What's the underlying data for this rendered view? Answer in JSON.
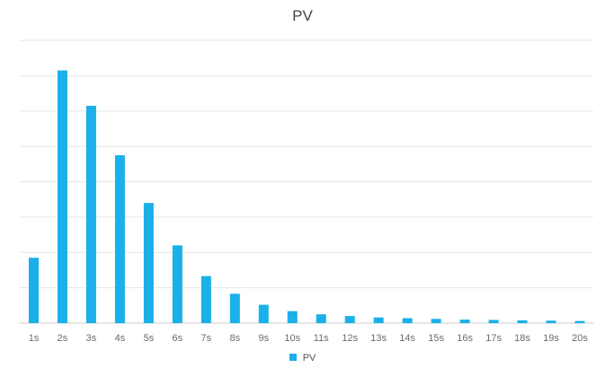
{
  "chart_data": {
    "type": "bar",
    "title": "PV",
    "xlabel": "",
    "ylabel": "",
    "categories": [
      "1s",
      "2s",
      "3s",
      "4s",
      "5s",
      "6s",
      "7s",
      "8s",
      "9s",
      "10s",
      "11s",
      "12s",
      "13s",
      "14s",
      "15s",
      "16s",
      "17s",
      "18s",
      "19s",
      "20s"
    ],
    "series": [
      {
        "name": "PV",
        "values": [
          1.85,
          7.15,
          6.15,
          4.75,
          3.4,
          2.2,
          1.33,
          0.83,
          0.52,
          0.34,
          0.25,
          0.2,
          0.16,
          0.14,
          0.12,
          0.1,
          0.09,
          0.08,
          0.07,
          0.06
        ]
      }
    ],
    "ylim": [
      0,
      8
    ],
    "ytick_count": 8,
    "y_tick_labels_shown": false,
    "grid": true,
    "legend_position": "bottom",
    "colors": {
      "bar": "#1ab0e8",
      "grid": "#e6e6e6",
      "axis": "#cccccc"
    }
  }
}
